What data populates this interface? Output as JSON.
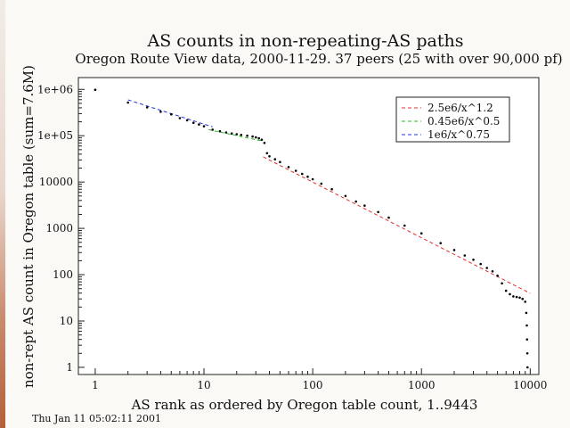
{
  "chart_data": {
    "type": "scatter",
    "title": "AS counts in non-repeating-AS paths",
    "subtitle": "Oregon Route View data, 2000-11-29. 37 peers (25 with over 90,000 pf)",
    "xlabel": "AS rank as ordered by Oregon table count, 1..9443",
    "ylabel": "non-rept AS count in Oregon table (sum=7.6M)",
    "xscale": "log",
    "yscale": "log",
    "xlim": [
      0.7,
      12000
    ],
    "ylim": [
      0.7,
      1800000
    ],
    "x_ticks": [
      {
        "v": 1,
        "label": "1"
      },
      {
        "v": 10,
        "label": "10"
      },
      {
        "v": 100,
        "label": "100"
      },
      {
        "v": 1000,
        "label": "1000"
      },
      {
        "v": 10000,
        "label": "10000"
      }
    ],
    "y_ticks": [
      {
        "v": 1,
        "label": "1"
      },
      {
        "v": 10,
        "label": "10"
      },
      {
        "v": 100,
        "label": "100"
      },
      {
        "v": 1000,
        "label": "1000"
      },
      {
        "v": 10000,
        "label": "10000"
      },
      {
        "v": 100000,
        "label": "1e+05"
      },
      {
        "v": 1000000,
        "label": "1e+06"
      }
    ],
    "legend_position": "top-right",
    "fits": [
      {
        "name": "2.5e6/x^1.2",
        "color": "#e03030",
        "coef": 2500000,
        "exp": 1.2,
        "x_range": [
          35,
          10000
        ]
      },
      {
        "name": "0.45e6/x^0.5",
        "color": "#22bb22",
        "coef": 450000,
        "exp": 0.5,
        "x_range": [
          11,
          35
        ]
      },
      {
        "name": "1e6/x^0.75",
        "color": "#2233dd",
        "coef": 1000000,
        "exp": 0.75,
        "x_range": [
          2,
          12
        ]
      }
    ],
    "data_points": [
      [
        1,
        980000
      ],
      [
        2,
        520000
      ],
      [
        3,
        410000
      ],
      [
        4,
        330000
      ],
      [
        5,
        290000
      ],
      [
        6,
        240000
      ],
      [
        7,
        215000
      ],
      [
        8,
        190000
      ],
      [
        9,
        175000
      ],
      [
        10,
        160000
      ],
      [
        12,
        135000
      ],
      [
        14,
        125000
      ],
      [
        16,
        118000
      ],
      [
        18,
        112000
      ],
      [
        20,
        108000
      ],
      [
        22,
        104000
      ],
      [
        25,
        100000
      ],
      [
        28,
        96000
      ],
      [
        30,
        92000
      ],
      [
        32,
        88000
      ],
      [
        34,
        82000
      ],
      [
        36,
        70000
      ],
      [
        38,
        42000
      ],
      [
        40,
        36000
      ],
      [
        45,
        31000
      ],
      [
        50,
        27000
      ],
      [
        60,
        21000
      ],
      [
        70,
        17500
      ],
      [
        80,
        15000
      ],
      [
        90,
        13000
      ],
      [
        100,
        11500
      ],
      [
        120,
        9200
      ],
      [
        150,
        7000
      ],
      [
        200,
        5000
      ],
      [
        250,
        3800
      ],
      [
        300,
        3100
      ],
      [
        400,
        2250
      ],
      [
        500,
        1700
      ],
      [
        700,
        1150
      ],
      [
        1000,
        780
      ],
      [
        1500,
        480
      ],
      [
        2000,
        340
      ],
      [
        2500,
        260
      ],
      [
        3000,
        210
      ],
      [
        3500,
        170
      ],
      [
        4000,
        140
      ],
      [
        4500,
        118
      ],
      [
        5000,
        95
      ],
      [
        5500,
        65
      ],
      [
        6000,
        45
      ],
      [
        6500,
        38
      ],
      [
        7000,
        34
      ],
      [
        7500,
        33
      ],
      [
        8000,
        32
      ],
      [
        8500,
        30
      ],
      [
        9000,
        26
      ],
      [
        9200,
        15
      ],
      [
        9300,
        8
      ],
      [
        9350,
        4
      ],
      [
        9400,
        2
      ],
      [
        9443,
        1
      ]
    ]
  },
  "footer": {
    "timestamp": "Thu Jan 11 05:02:11 2001"
  }
}
